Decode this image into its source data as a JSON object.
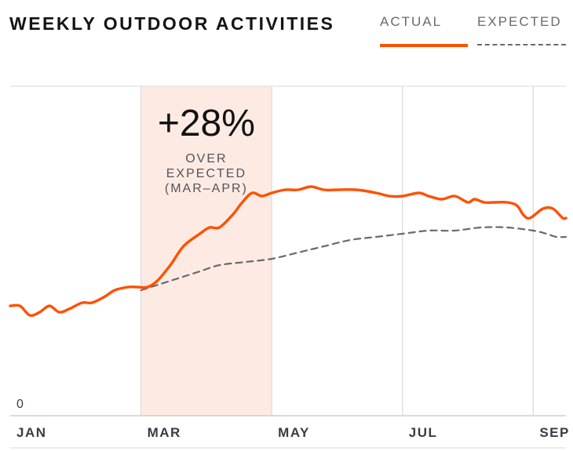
{
  "colors": {
    "actual": "#ff5000",
    "expected": "#6b6873",
    "highlight": "#fdebe3",
    "grid": "#d9d9dd"
  },
  "chart_data": {
    "type": "line",
    "title": "WEEKLY OUTDOOR ACTIVITIES",
    "x_unit": "month (Jan = 0)",
    "xlim": [
      0,
      8.5
    ],
    "ylim": [
      0,
      100
    ],
    "x_ticks": [
      {
        "x": 0,
        "label": "JAN"
      },
      {
        "x": 2,
        "label": "MAR"
      },
      {
        "x": 4,
        "label": "MAY"
      },
      {
        "x": 6,
        "label": "JUL"
      },
      {
        "x": 8,
        "label": "SEP"
      }
    ],
    "y_ticks": [
      {
        "y": 0,
        "label": "0"
      }
    ],
    "grid": "vertical lines at month ticks",
    "legend_position": "top-right",
    "highlight_band": {
      "x_start": 2,
      "x_end": 4
    },
    "annotation": {
      "value": "+28%",
      "text": [
        "OVER",
        "EXPECTED",
        "(MAR–APR)"
      ]
    },
    "series": [
      {
        "name": "ACTUAL",
        "style": "solid",
        "points": [
          [
            0.0,
            30
          ],
          [
            0.15,
            30
          ],
          [
            0.3,
            27
          ],
          [
            0.45,
            28
          ],
          [
            0.6,
            30
          ],
          [
            0.75,
            28
          ],
          [
            0.9,
            29
          ],
          [
            1.1,
            31
          ],
          [
            1.25,
            31
          ],
          [
            1.45,
            33
          ],
          [
            1.6,
            35
          ],
          [
            1.8,
            36
          ],
          [
            1.95,
            36
          ],
          [
            2.1,
            36
          ],
          [
            2.25,
            38
          ],
          [
            2.45,
            43
          ],
          [
            2.65,
            49
          ],
          [
            2.9,
            53
          ],
          [
            3.05,
            55
          ],
          [
            3.2,
            55
          ],
          [
            3.4,
            59
          ],
          [
            3.55,
            63
          ],
          [
            3.7,
            66
          ],
          [
            3.85,
            65
          ],
          [
            4.0,
            66
          ],
          [
            4.2,
            67
          ],
          [
            4.4,
            67
          ],
          [
            4.6,
            68
          ],
          [
            4.8,
            67
          ],
          [
            5.0,
            67
          ],
          [
            5.3,
            67
          ],
          [
            5.6,
            66
          ],
          [
            5.8,
            65
          ],
          [
            6.0,
            65
          ],
          [
            6.25,
            66
          ],
          [
            6.4,
            65
          ],
          [
            6.6,
            64
          ],
          [
            6.8,
            65
          ],
          [
            7.0,
            63
          ],
          [
            7.1,
            64
          ],
          [
            7.25,
            63
          ],
          [
            7.4,
            63
          ],
          [
            7.6,
            63
          ],
          [
            7.75,
            62
          ],
          [
            7.85,
            59
          ],
          [
            7.95,
            58
          ],
          [
            8.15,
            61
          ],
          [
            8.3,
            61
          ],
          [
            8.45,
            58
          ],
          [
            8.5,
            58
          ]
        ]
      },
      {
        "name": "EXPECTED",
        "style": "dashed",
        "points": [
          [
            2.0,
            35
          ],
          [
            2.3,
            37
          ],
          [
            2.6,
            39
          ],
          [
            2.9,
            41
          ],
          [
            3.2,
            43
          ],
          [
            3.6,
            44
          ],
          [
            4.0,
            45
          ],
          [
            4.4,
            47
          ],
          [
            4.8,
            49
          ],
          [
            5.2,
            51
          ],
          [
            5.6,
            52
          ],
          [
            6.0,
            53
          ],
          [
            6.4,
            54
          ],
          [
            6.8,
            54
          ],
          [
            7.2,
            55
          ],
          [
            7.6,
            55
          ],
          [
            8.0,
            54
          ],
          [
            8.2,
            53
          ],
          [
            8.35,
            52
          ],
          [
            8.5,
            52
          ]
        ]
      }
    ]
  }
}
